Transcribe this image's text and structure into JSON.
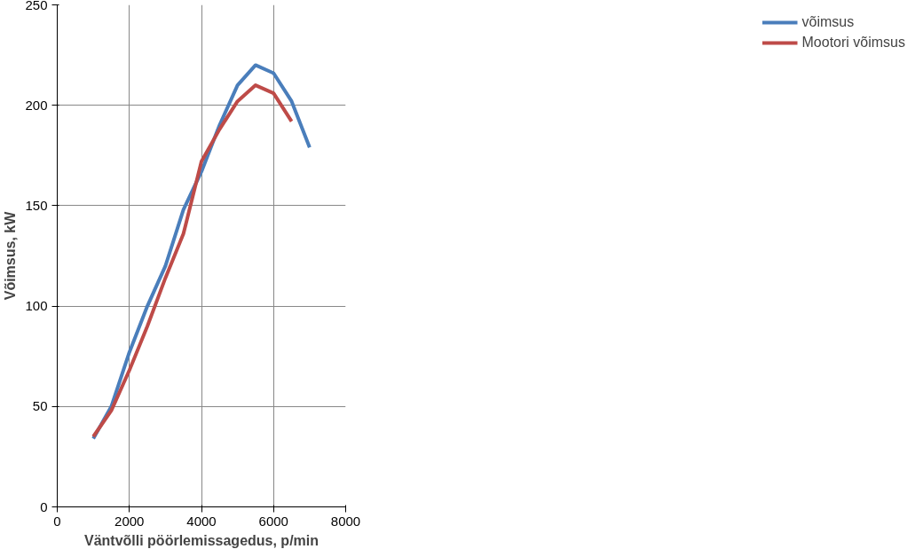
{
  "chart_data": {
    "type": "line",
    "xlabel": "Väntvõlli pöörlemissagedus, p/min",
    "ylabel": "Võimsus, kW",
    "x": [
      1000,
      1500,
      2000,
      2500,
      3000,
      3500,
      4000,
      4500,
      5000,
      5500,
      6000,
      6500,
      7000
    ],
    "series": [
      {
        "name": "võimsus",
        "color": "#4a7ebb",
        "values": [
          34,
          50,
          77,
          100,
          120,
          148,
          167,
          190,
          210,
          220,
          216,
          202,
          179
        ]
      },
      {
        "name": "Mootori võimsus",
        "color": "#be4b48",
        "values": [
          35,
          48,
          68,
          90,
          114,
          136,
          172,
          188,
          202,
          210,
          206,
          192,
          null
        ]
      }
    ],
    "xlim": [
      0,
      8000
    ],
    "xticks": [
      0,
      2000,
      4000,
      6000,
      8000
    ],
    "ylim": [
      0,
      250
    ],
    "yticks": [
      0,
      50,
      100,
      150,
      200,
      250
    ],
    "grid": true,
    "legend": "right",
    "marker": "none",
    "line_style": "solid"
  }
}
